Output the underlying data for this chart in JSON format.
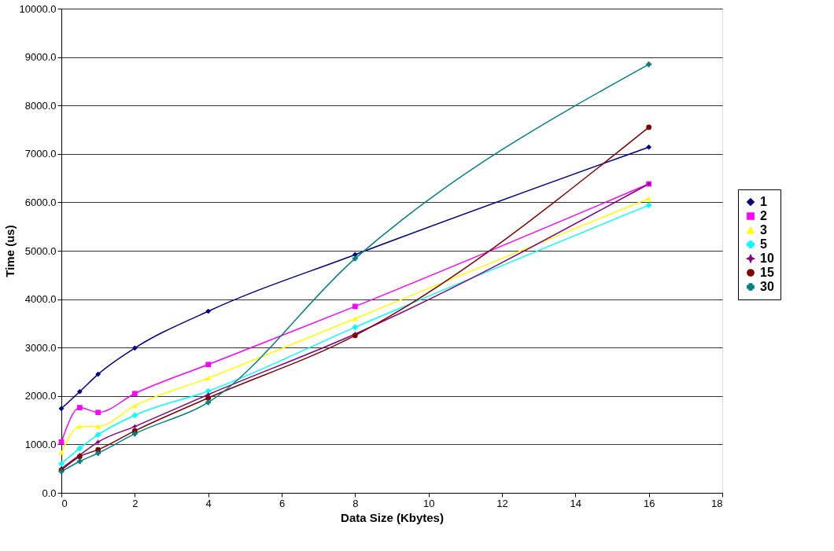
{
  "chart_data": {
    "type": "line",
    "xlabel": "Data Size (Kbytes)",
    "ylabel": "Time (us)",
    "x": [
      0,
      0.5,
      1,
      2,
      4,
      8,
      16
    ],
    "series": [
      {
        "name": "1",
        "color": "#000080",
        "marker": "diamond",
        "values": [
          1740,
          2090,
          2450,
          2990,
          3750,
          4920,
          7140
        ]
      },
      {
        "name": "2",
        "color": "#ff00ff",
        "marker": "square",
        "values": [
          1050,
          1760,
          1660,
          2050,
          2650,
          3850,
          6380
        ]
      },
      {
        "name": "3",
        "color": "#ffff00",
        "marker": "triangle",
        "values": [
          830,
          1370,
          1370,
          1800,
          2370,
          3600,
          6080
        ]
      },
      {
        "name": "5",
        "color": "#00ffff",
        "marker": "cross",
        "values": [
          600,
          920,
          1200,
          1600,
          2100,
          3420,
          5940
        ]
      },
      {
        "name": "10",
        "color": "#800080",
        "marker": "star",
        "values": [
          500,
          780,
          1050,
          1370,
          2030,
          3280,
          6380
        ]
      },
      {
        "name": "15",
        "color": "#800000",
        "marker": "circle",
        "values": [
          470,
          750,
          890,
          1280,
          1960,
          3250,
          7550
        ]
      },
      {
        "name": "30",
        "color": "#008080",
        "marker": "cross",
        "values": [
          440,
          650,
          820,
          1220,
          1870,
          4840,
          8850
        ]
      }
    ],
    "xlim": [
      0,
      18
    ],
    "xticks": [
      0,
      2,
      4,
      6,
      8,
      10,
      12,
      14,
      16,
      18
    ],
    "ylim": [
      0,
      10000
    ],
    "yticks": [
      {
        "value": 0,
        "label": "0.0"
      },
      {
        "value": 1000,
        "label": "1000.0"
      },
      {
        "value": 2000,
        "label": "2000.0"
      },
      {
        "value": 3000,
        "label": "3000.0"
      },
      {
        "value": 4000,
        "label": "4000.0"
      },
      {
        "value": 5000,
        "label": "5000.0"
      },
      {
        "value": 6000,
        "label": "6000.0"
      },
      {
        "value": 7000,
        "label": "7000.0"
      },
      {
        "value": 8000,
        "label": "8000.0"
      },
      {
        "value": 9000,
        "label": "9000.0"
      },
      {
        "value": 10000,
        "label": "10000.0"
      }
    ],
    "grid": "y",
    "legend": "right",
    "line_style": "solid"
  }
}
